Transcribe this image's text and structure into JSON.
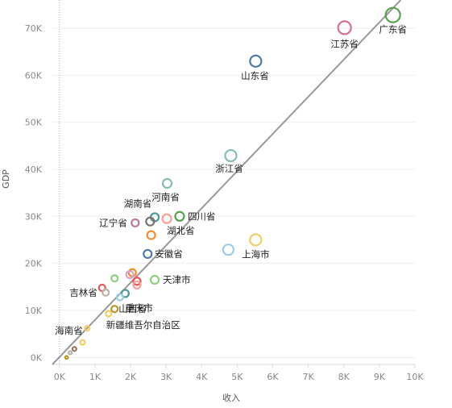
{
  "chart_data": {
    "type": "scatter",
    "title": "",
    "xlabel": "收入",
    "ylabel": "GDP",
    "xlim": [
      -0.2,
      10.0
    ],
    "ylim": [
      -1.5,
      76
    ],
    "x_ticks": [
      "0K",
      "1K",
      "2K",
      "3K",
      "4K",
      "5K",
      "6K",
      "7K",
      "8K",
      "9K",
      "10K"
    ],
    "y_ticks": [
      "0K",
      "10K",
      "20K",
      "30K",
      "40K",
      "50K",
      "60K",
      "70K"
    ],
    "grid": true,
    "x_unit": "K",
    "y_unit": "K",
    "trend_line": {
      "from": [
        -0.2,
        -1.5
      ],
      "to": [
        9.6,
        76
      ]
    },
    "points": [
      {
        "label": "广东省",
        "x": 9.38,
        "y": 72.8,
        "color": "#59a14f",
        "size": 9
      },
      {
        "label": "江苏省",
        "x": 8.02,
        "y": 70.1,
        "color": "#d37295",
        "size": 8
      },
      {
        "label": "山东省",
        "x": 5.52,
        "y": 63.0,
        "color": "#4e79a7",
        "size": 7
      },
      {
        "label": "浙江省",
        "x": 4.82,
        "y": 42.9,
        "color": "#86bcb6",
        "size": 7
      },
      {
        "label": "河南省",
        "x": 3.03,
        "y": 37.0,
        "color": "#86bcb6",
        "size": 5.5
      },
      {
        "label": "湖南省",
        "x": 2.68,
        "y": 29.8,
        "color": "#499894",
        "size": 5
      },
      {
        "label": "四川省",
        "x": 3.38,
        "y": 30.0,
        "color": "#59a14f",
        "size": 5.5
      },
      {
        "label": "湖北省",
        "x": 3.02,
        "y": 29.5,
        "color": "#ff9d9a",
        "size": 5.5
      },
      {
        "label": "辽宁省",
        "x": 2.13,
        "y": 28.6,
        "color": "#b07aa1",
        "size": 4.5
      },
      {
        "label": "",
        "x": 2.55,
        "y": 28.9,
        "color": "#79706e",
        "size": 5
      },
      {
        "label": "",
        "x": 2.58,
        "y": 26.0,
        "color": "#f28e2b",
        "size": 5
      },
      {
        "label": "上海市",
        "x": 5.52,
        "y": 25.0,
        "color": "#f1ce63",
        "size": 7
      },
      {
        "label": "",
        "x": 4.75,
        "y": 22.9,
        "color": "#a0cbe8",
        "size": 6.5
      },
      {
        "label": "安徽省",
        "x": 2.48,
        "y": 22.0,
        "color": "#4e79a7",
        "size": 5
      },
      {
        "label": "",
        "x": 2.05,
        "y": 18.0,
        "color": "#f28e2b",
        "size": 4.5
      },
      {
        "label": "",
        "x": 1.98,
        "y": 17.6,
        "color": "#d4a6c8",
        "size": 4.5
      },
      {
        "label": "天津市",
        "x": 2.68,
        "y": 16.5,
        "color": "#8cd17d",
        "size": 5
      },
      {
        "label": "",
        "x": 2.18,
        "y": 16.2,
        "color": "#e15759",
        "size": 4.5
      },
      {
        "label": "",
        "x": 2.18,
        "y": 15.4,
        "color": "#ff9d9a",
        "size": 4.5
      },
      {
        "label": "",
        "x": 1.55,
        "y": 16.8,
        "color": "#8cd17d",
        "size": 4
      },
      {
        "label": "吉林省",
        "x": 1.2,
        "y": 14.8,
        "color": "#e15759",
        "size": 4
      },
      {
        "label": "",
        "x": 1.3,
        "y": 13.8,
        "color": "#bab0ac",
        "size": 4
      },
      {
        "label": "重庆市",
        "x": 1.85,
        "y": 13.6,
        "color": "#499894",
        "size": 4.5
      },
      {
        "label": "",
        "x": 1.7,
        "y": 12.8,
        "color": "#a0cbe8",
        "size": 4
      },
      {
        "label": "山西省",
        "x": 1.55,
        "y": 10.3,
        "color": "#b6992d",
        "size": 4
      },
      {
        "label": "新疆维吾尔自治区",
        "x": 1.38,
        "y": 9.3,
        "color": "#f1ce63",
        "size": 3.5
      },
      {
        "label": "",
        "x": 0.78,
        "y": 6.2,
        "color": "#f1ce63",
        "size": 3
      },
      {
        "label": "",
        "x": 0.65,
        "y": 3.2,
        "color": "#f1ce63",
        "size": 3
      },
      {
        "label": "海南省",
        "x": 0.42,
        "y": 1.8,
        "color": "#9d7660",
        "size": 2.5
      },
      {
        "label": "",
        "x": 0.3,
        "y": 1.0,
        "color": "#bab0ac",
        "size": 2
      },
      {
        "label": "",
        "x": 0.2,
        "y": 0.0,
        "color": "#b6992d",
        "size": 1.8
      }
    ]
  }
}
